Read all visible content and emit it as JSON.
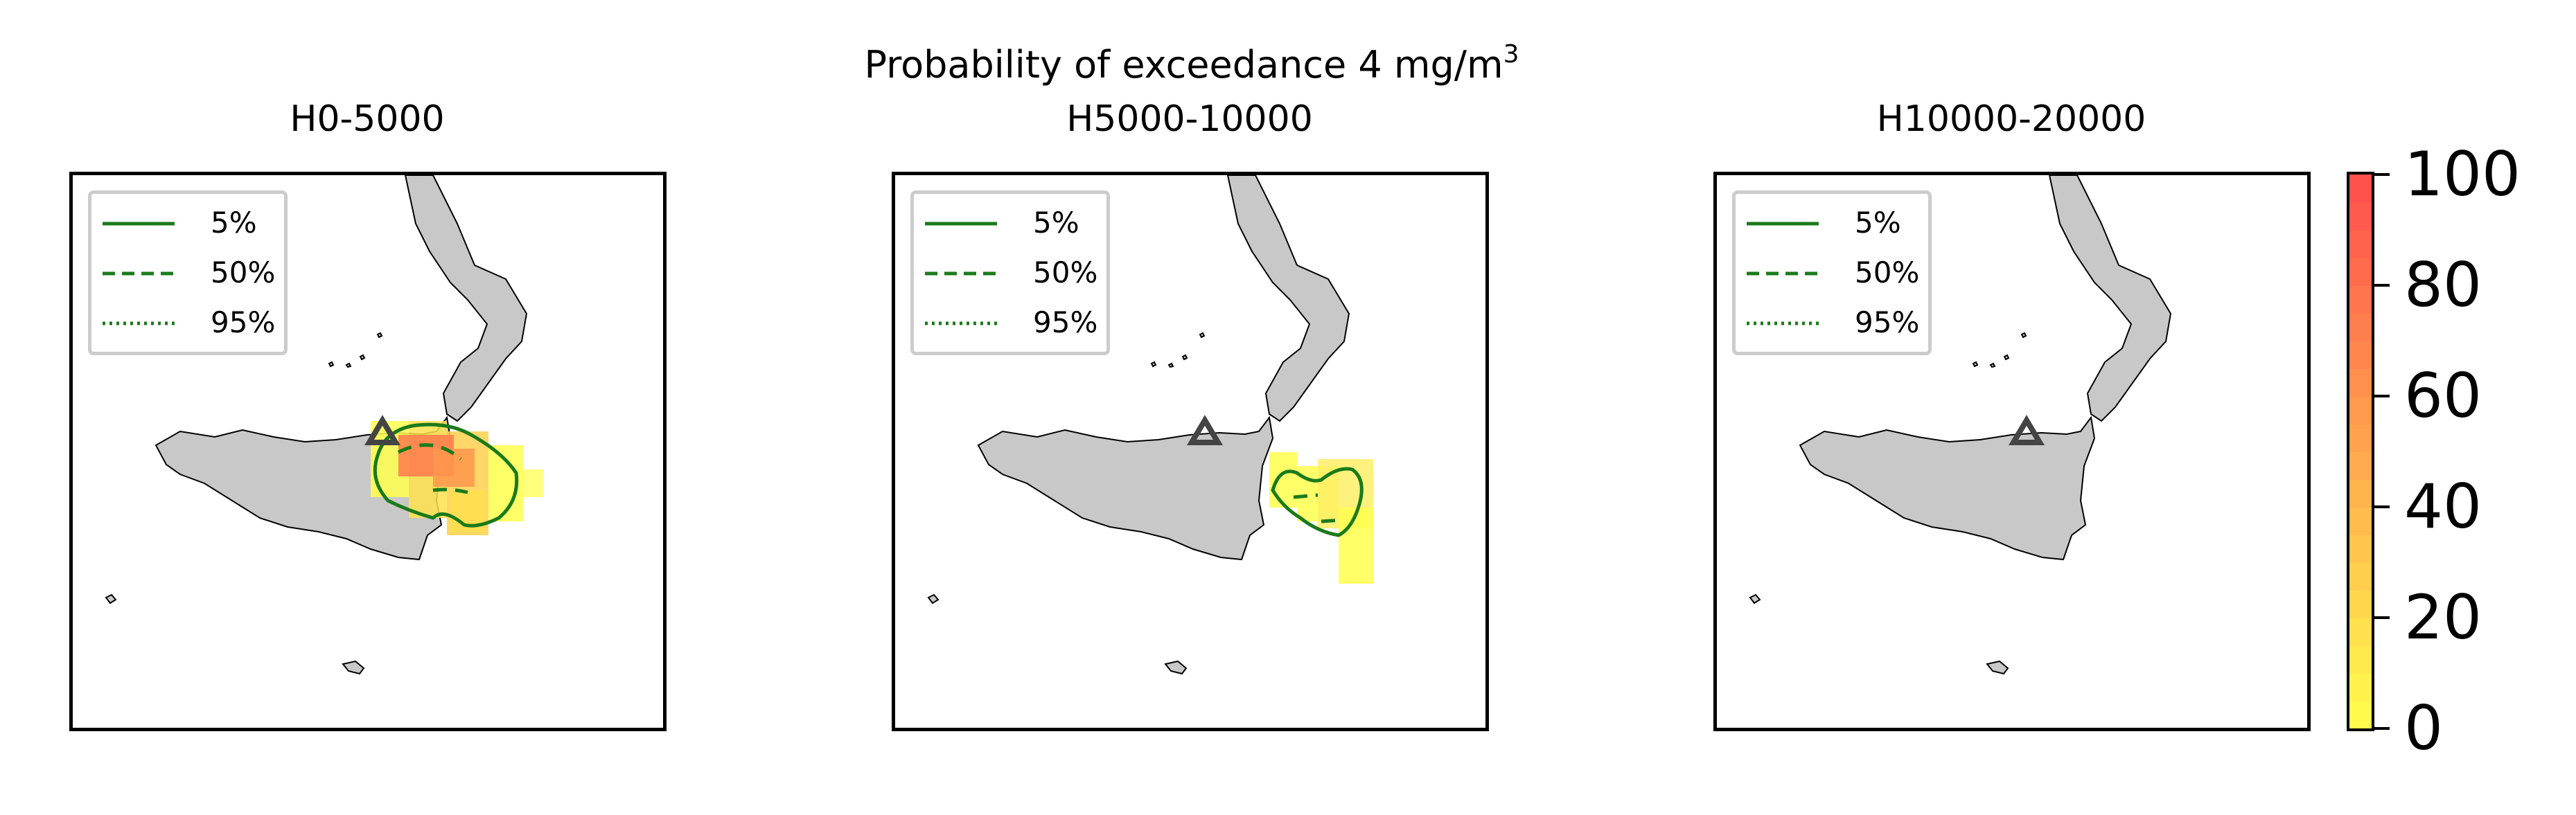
{
  "figure": {
    "suptitle": "Probability of exceedance 4 mg/m",
    "suptitle_sup": "3"
  },
  "panels": [
    {
      "title": "H0-5000"
    },
    {
      "title": "H5000-10000"
    },
    {
      "title": "H10000-20000"
    }
  ],
  "legend": {
    "items": [
      {
        "label": "5%",
        "style": "solid"
      },
      {
        "label": "50%",
        "style": "dashed"
      },
      {
        "label": "95%",
        "style": "dotted"
      }
    ],
    "line_color": "#1a7a1a"
  },
  "colorbar": {
    "min": 0,
    "max": 100,
    "ticks": [
      "0",
      "20",
      "40",
      "60",
      "80",
      "100"
    ],
    "colormap": "yellow-to-red",
    "color_low": "#ffff4d",
    "color_high": "#ff4d4d"
  },
  "map": {
    "land_color": "#c8c8c8",
    "coast_color": "#000000",
    "volcano_marker": "triangle-icon",
    "volcano_color": "#444444"
  }
}
